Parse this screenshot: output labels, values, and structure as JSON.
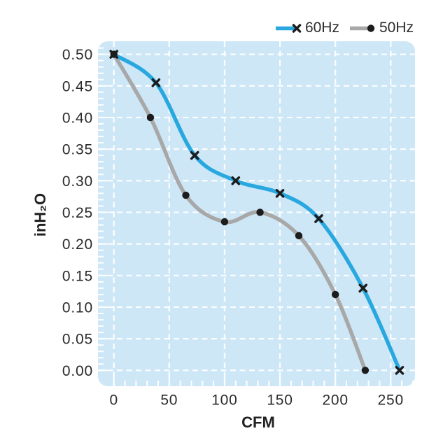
{
  "chart_data": {
    "type": "line",
    "title": "",
    "xlabel": "CFM",
    "ylabel": "inH2O",
    "ylabel_display": "inH₂O",
    "legend_position": "top-right",
    "grid": "dashed-white-on-lightblue",
    "x_axis": {
      "ticks": [
        0,
        50,
        100,
        150,
        200,
        250
      ],
      "minor_step": 10,
      "range": [
        0,
        270
      ]
    },
    "y_axis": {
      "tick_labels": [
        "0.50",
        "0.45",
        "0.40",
        "0.35",
        "0.30",
        "0.25",
        "0.20",
        "0.15",
        "0.10",
        "0.05",
        "0.00"
      ],
      "minor_step": 0.01,
      "range": [
        0,
        0.52
      ]
    },
    "series": [
      {
        "name": "60Hz",
        "color": "#29a8df",
        "marker": "x",
        "points": [
          [
            0,
            0.5
          ],
          [
            38,
            0.455
          ],
          [
            73,
            0.34
          ],
          [
            110,
            0.3
          ],
          [
            150,
            0.28
          ],
          [
            185,
            0.24
          ],
          [
            225,
            0.13
          ],
          [
            258,
            0.0
          ]
        ]
      },
      {
        "name": "50Hz",
        "color": "#a8a8a8",
        "marker": "dot",
        "points": [
          [
            0,
            0.5
          ],
          [
            33,
            0.4
          ],
          [
            65,
            0.277
          ],
          [
            100,
            0.235
          ],
          [
            132,
            0.25
          ],
          [
            167,
            0.213
          ],
          [
            200,
            0.12
          ],
          [
            227,
            0.0
          ]
        ]
      }
    ],
    "colors": {
      "plot_background": "#cde7f7",
      "gridline": "#ffffff",
      "tick": "#ffffff",
      "marker": "#1c1c1c",
      "text": "#2b2b2b"
    }
  }
}
